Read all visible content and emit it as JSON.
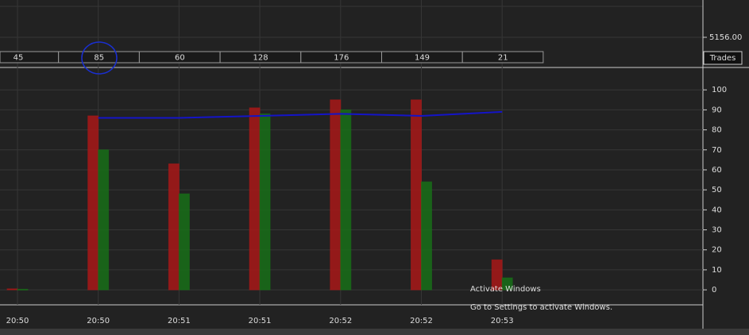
{
  "chart_data": {
    "type": "bar",
    "categories": [
      "20:50",
      "20:50",
      "20:51",
      "20:51",
      "20:52",
      "20:52",
      "20:53"
    ],
    "series": [
      {
        "color": "#a81717",
        "values": [
          0.5,
          87,
          63,
          91,
          95,
          95,
          15
        ]
      },
      {
        "color": "#186f18",
        "values": [
          0.3,
          70,
          48,
          88,
          90,
          54,
          6
        ]
      },
      {
        "type": "line",
        "color": "#1414c8",
        "values": [
          null,
          86,
          86,
          87,
          88,
          87,
          89
        ]
      }
    ],
    "ylim": [
      -7.5,
      110
    ],
    "yticks": [
      0,
      10,
      20,
      30,
      40,
      50,
      60,
      70,
      80,
      90,
      100
    ],
    "grid": true
  },
  "price_label": "5156.00",
  "trades_panel": {
    "label": "Trades",
    "values": [
      45,
      85,
      60,
      128,
      176,
      149,
      21
    ]
  },
  "watermark": {
    "title": "Activate Windows",
    "subtitle": "Go to Settings to activate Windows."
  }
}
